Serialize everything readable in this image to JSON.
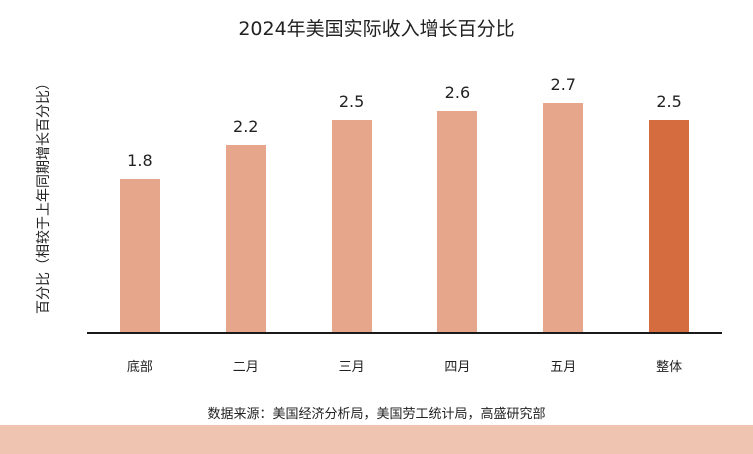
{
  "title": "2024年美国实际收入增长百分比",
  "colors": {
    "bar": "#E6A68C",
    "bar_highlight": "#D46C40",
    "axis": "#1a1a1a",
    "footer_band": "#EFC5B2"
  },
  "chart_data": {
    "type": "bar",
    "title": "2024年美国实际收入增长百分比",
    "xlabel": "",
    "ylabel": "百分比（相较于上年同期增长百分比）",
    "categories": [
      "底部",
      "二月",
      "三月",
      "四月",
      "五月",
      "整体"
    ],
    "values": [
      1.8,
      2.2,
      2.5,
      2.6,
      2.7,
      2.5
    ],
    "value_labels": [
      "1.8",
      "2.2",
      "2.5",
      "2.6",
      "2.7",
      "2.5"
    ],
    "highlight_index": 5,
    "ylim": [
      0,
      3.2
    ],
    "grid": false,
    "legend": "none",
    "source": "数据来源：美国经济分析局，美国劳工统计局，高盛研究部"
  },
  "y_axis_label": "百分比（相较于上年同期增长百分比）",
  "source_note": "数据来源：美国经济分析局，美国劳工统计局，高盛研究部"
}
